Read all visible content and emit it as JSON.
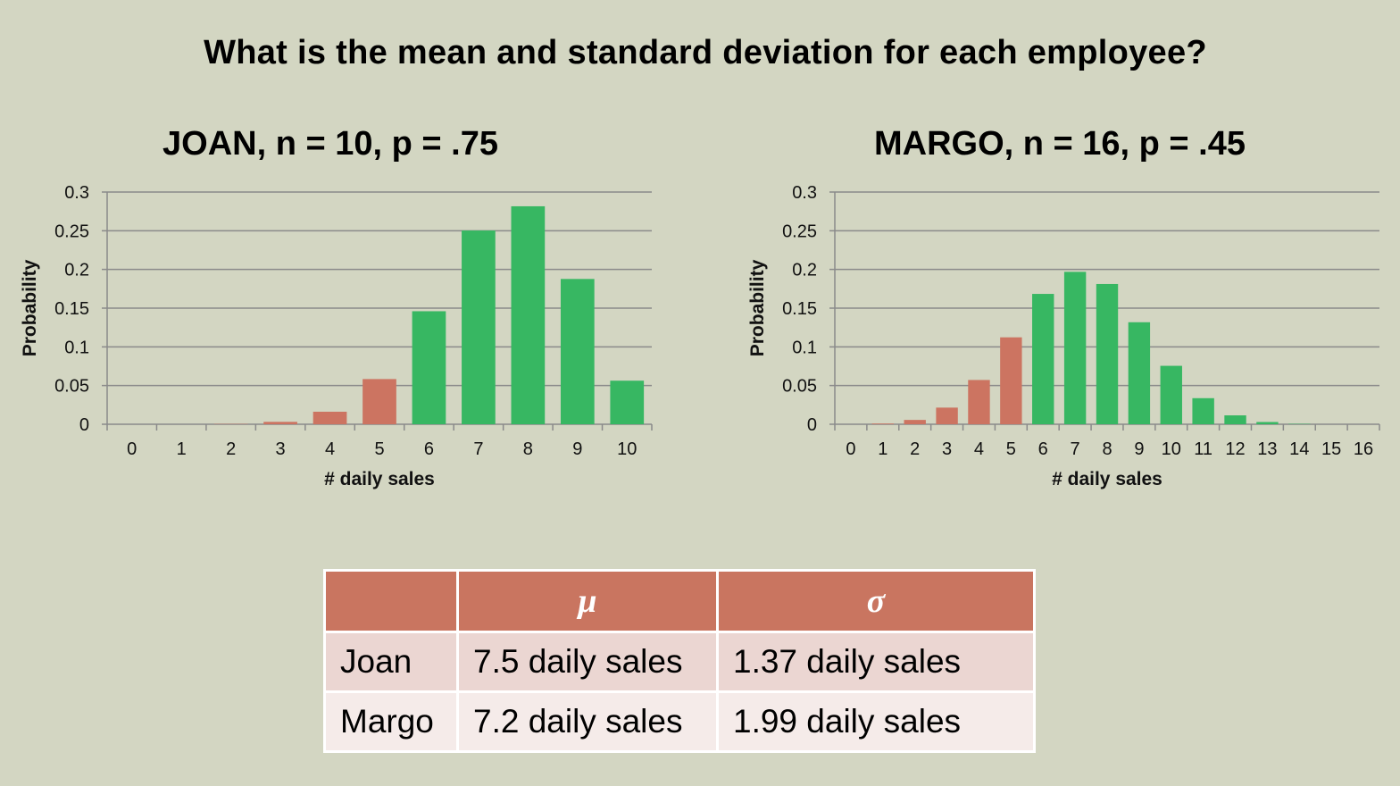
{
  "title": "What is the mean and standard deviation for each employee?",
  "chart_data": [
    {
      "type": "bar",
      "title": "JOAN, n = 10, p = .75",
      "xlabel": "# daily sales",
      "ylabel": "Probability",
      "ylim": [
        0,
        0.3
      ],
      "yticks": [
        "0",
        "0.05",
        "0.1",
        "0.15",
        "0.2",
        "0.25",
        "0.3"
      ],
      "categories": [
        "0",
        "1",
        "2",
        "3",
        "4",
        "5",
        "6",
        "7",
        "8",
        "9",
        "10"
      ],
      "values": [
        0.0,
        0.0,
        0.0004,
        0.0031,
        0.0162,
        0.0584,
        0.146,
        0.2503,
        0.2816,
        0.1877,
        0.0563
      ],
      "bar_colors": [
        "#cc7461",
        "#cc7461",
        "#cc7461",
        "#cc7461",
        "#cc7461",
        "#cc7461",
        "#37b762",
        "#37b762",
        "#37b762",
        "#37b762",
        "#37b762"
      ],
      "grid": true,
      "legend": "none"
    },
    {
      "type": "bar",
      "title": "MARGO, n = 16, p = .45",
      "xlabel": "# daily sales",
      "ylabel": "Probability",
      "ylim": [
        0,
        0.3
      ],
      "yticks": [
        "0",
        "0.05",
        "0.1",
        "0.15",
        "0.2",
        "0.25",
        "0.3"
      ],
      "categories": [
        "0",
        "1",
        "2",
        "3",
        "4",
        "5",
        "6",
        "7",
        "8",
        "9",
        "10",
        "11",
        "12",
        "13",
        "14",
        "15",
        "16"
      ],
      "values": [
        0.0001,
        0.0009,
        0.0056,
        0.0215,
        0.0572,
        0.1123,
        0.1684,
        0.1969,
        0.1812,
        0.1318,
        0.0755,
        0.0337,
        0.0115,
        0.0029,
        0.0005,
        0.0001,
        0.0
      ],
      "bar_colors": [
        "#cc7461",
        "#cc7461",
        "#cc7461",
        "#cc7461",
        "#cc7461",
        "#cc7461",
        "#37b762",
        "#37b762",
        "#37b762",
        "#37b762",
        "#37b762",
        "#37b762",
        "#37b762",
        "#37b762",
        "#37b762",
        "#37b762",
        "#37b762"
      ],
      "grid": true,
      "legend": "none"
    }
  ],
  "table": {
    "headers": [
      "",
      "μ",
      "σ"
    ],
    "rows": [
      {
        "name": "Joan",
        "mu": "7.5 daily sales",
        "sigma": "1.37 daily sales"
      },
      {
        "name": "Margo",
        "mu": "7.2 daily sales",
        "sigma": "1.99 daily sales"
      }
    ]
  },
  "colors": {
    "background": "#d3d6c2",
    "below_mean": "#cc7461",
    "at_or_above_mean": "#37b762",
    "table_header": "#c97560",
    "table_row1": "#ebd6d2",
    "table_row2": "#f5ebe9"
  }
}
